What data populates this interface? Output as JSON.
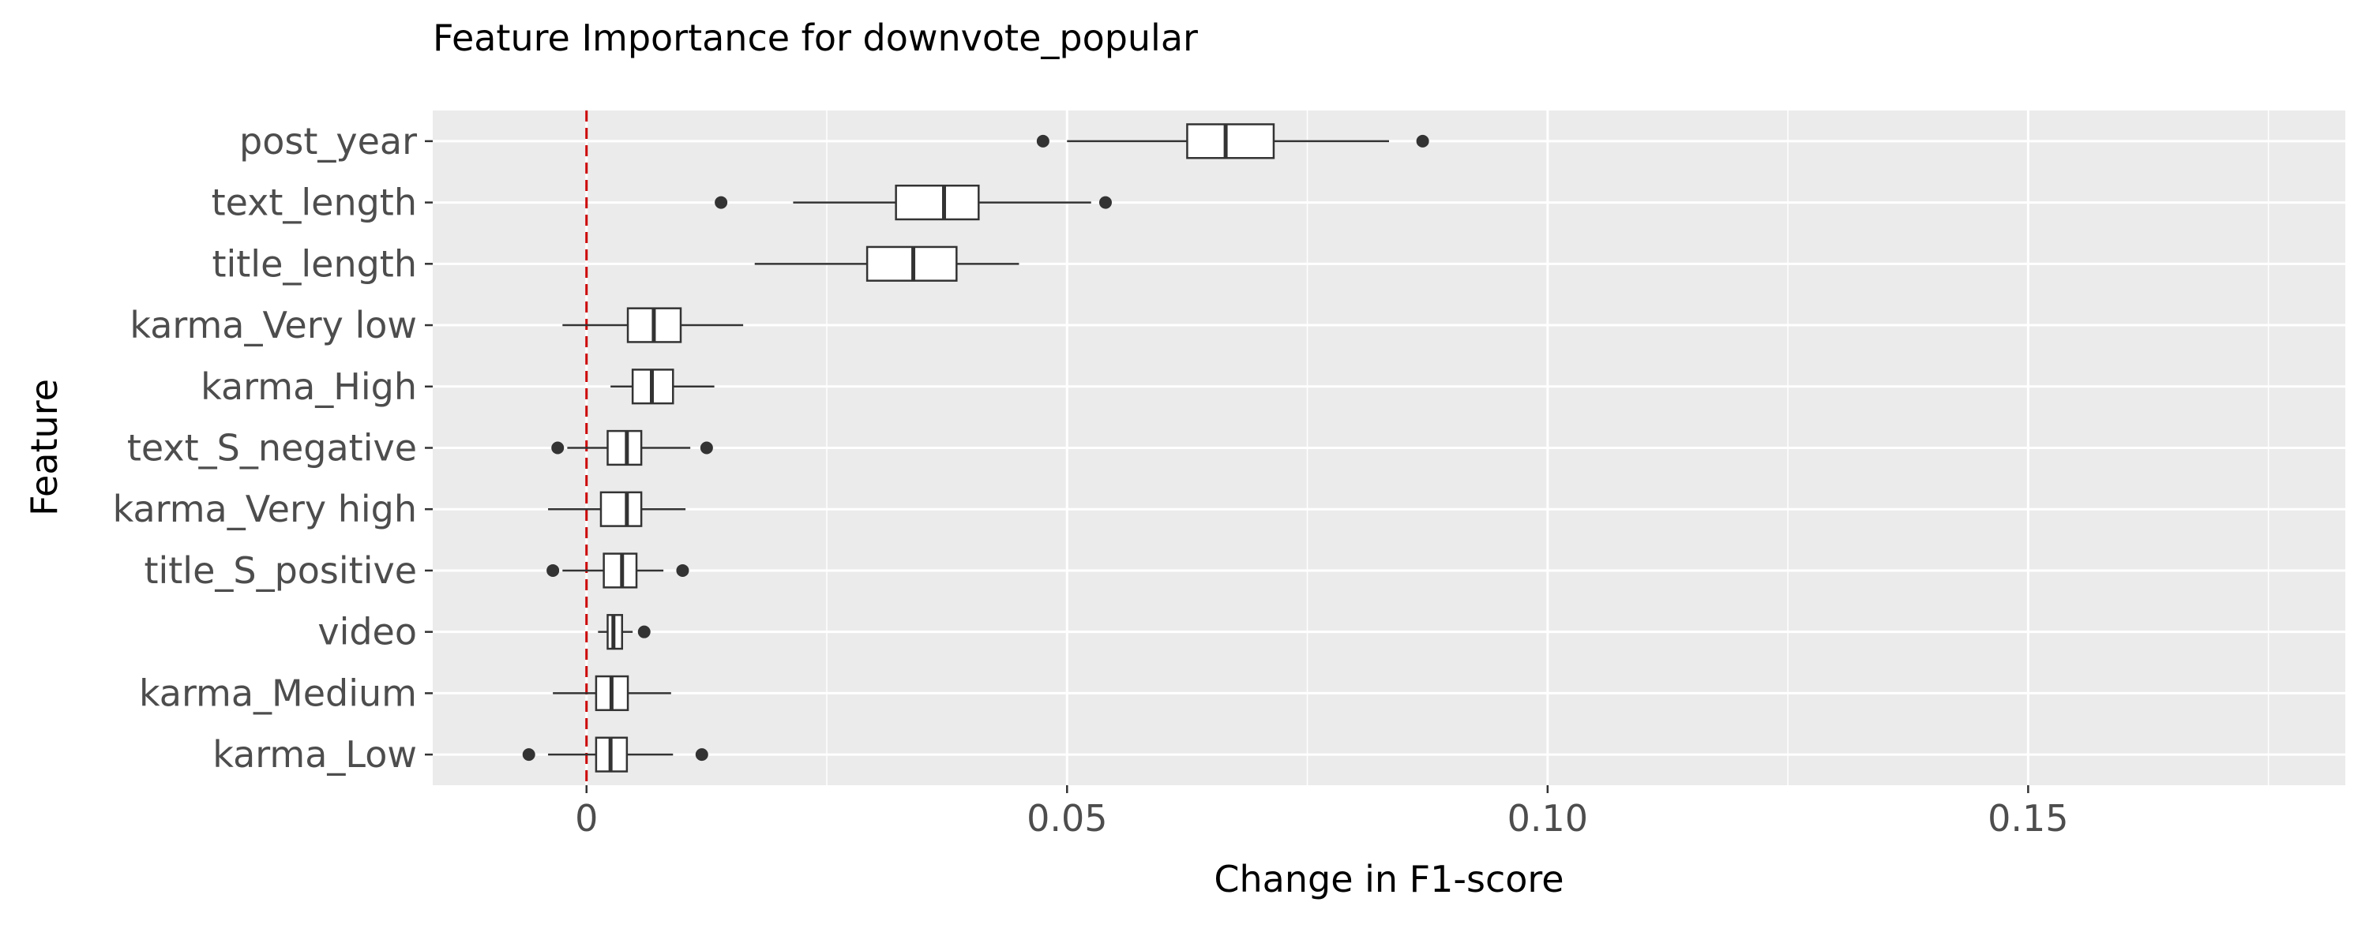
{
  "chart_data": {
    "type": "boxplot",
    "orientation": "horizontal",
    "title": "Feature Importance for downvote_popular",
    "xlabel": "Change in F1-score",
    "ylabel": "Feature",
    "xlim": [
      -0.016,
      0.183
    ],
    "x_ticks": [
      0,
      0.05,
      0.1,
      0.15
    ],
    "x_tick_labels": [
      "0",
      "0.05",
      "0.10",
      "0.15"
    ],
    "grid": true,
    "legend": "none",
    "reference_line": {
      "x": 0,
      "color": "#cc0000",
      "style": "dashed"
    },
    "colors": {
      "panel_background": "#ebebeb",
      "grid_major": "#ffffff",
      "box_fill": "#ffffff",
      "box_outline": "#333333",
      "outlier": "#333333",
      "tick_text": "#4d4d4d"
    },
    "categories": [
      "post_year",
      "text_length",
      "title_length",
      "karma_Very low",
      "karma_High",
      "text_S_negative",
      "karma_Very high",
      "title_S_positive",
      "video",
      "karma_Medium",
      "karma_Low"
    ],
    "boxes": [
      {
        "feature": "post_year",
        "whisker_low": 0.05,
        "q1": 0.0625,
        "median": 0.0665,
        "q3": 0.0715,
        "whisker_high": 0.0835,
        "outliers": [
          0.0475,
          0.087
        ]
      },
      {
        "feature": "text_length",
        "whisker_low": 0.0215,
        "q1": 0.0322,
        "median": 0.0372,
        "q3": 0.0408,
        "whisker_high": 0.0525,
        "outliers": [
          0.014,
          0.054
        ]
      },
      {
        "feature": "title_length",
        "whisker_low": 0.0175,
        "q1": 0.0292,
        "median": 0.034,
        "q3": 0.0385,
        "whisker_high": 0.045,
        "outliers": []
      },
      {
        "feature": "karma_Very low",
        "whisker_low": -0.0025,
        "q1": 0.0043,
        "median": 0.007,
        "q3": 0.0098,
        "whisker_high": 0.0163,
        "outliers": []
      },
      {
        "feature": "karma_High",
        "whisker_low": 0.0025,
        "q1": 0.0048,
        "median": 0.0068,
        "q3": 0.009,
        "whisker_high": 0.0133,
        "outliers": []
      },
      {
        "feature": "text_S_negative",
        "whisker_low": -0.002,
        "q1": 0.0022,
        "median": 0.0042,
        "q3": 0.0057,
        "whisker_high": 0.0108,
        "outliers": [
          -0.003,
          0.0125
        ]
      },
      {
        "feature": "karma_Very high",
        "whisker_low": -0.004,
        "q1": 0.0015,
        "median": 0.0042,
        "q3": 0.0057,
        "whisker_high": 0.0103,
        "outliers": []
      },
      {
        "feature": "title_S_positive",
        "whisker_low": -0.0025,
        "q1": 0.0018,
        "median": 0.0037,
        "q3": 0.0052,
        "whisker_high": 0.008,
        "outliers": [
          -0.0035,
          0.01
        ]
      },
      {
        "feature": "video",
        "whisker_low": 0.0012,
        "q1": 0.0022,
        "median": 0.0028,
        "q3": 0.0037,
        "whisker_high": 0.0048,
        "outliers": [
          0.006
        ]
      },
      {
        "feature": "karma_Medium",
        "whisker_low": -0.0035,
        "q1": 0.001,
        "median": 0.0026,
        "q3": 0.0043,
        "whisker_high": 0.0088,
        "outliers": []
      },
      {
        "feature": "karma_Low",
        "whisker_low": -0.004,
        "q1": 0.001,
        "median": 0.0025,
        "q3": 0.0042,
        "whisker_high": 0.009,
        "outliers": [
          -0.006,
          0.012
        ]
      }
    ]
  }
}
